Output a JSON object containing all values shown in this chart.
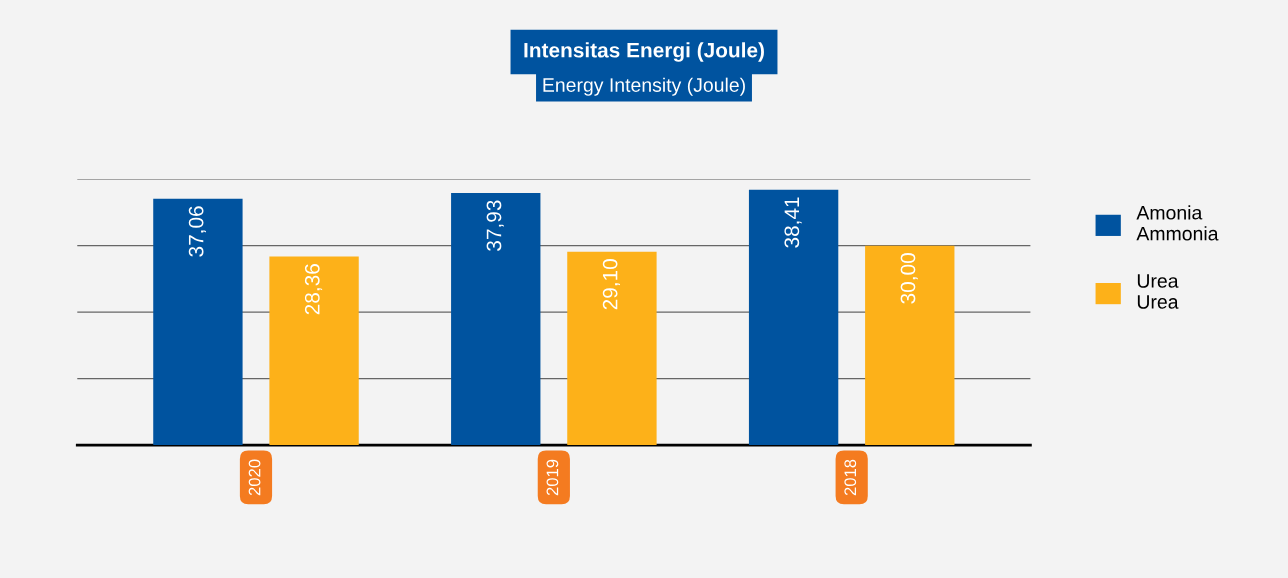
{
  "chart_data": {
    "type": "bar",
    "title": "Intensitas Energi (Joule)",
    "subtitle": "Energy Intensity (Joule)",
    "categories": [
      "2020",
      "2019",
      "2018"
    ],
    "series": [
      {
        "name": "Amonia\nAmmonia",
        "color": "#00539f",
        "values": [
          37.06,
          37.93,
          38.41
        ],
        "value_labels": [
          "37,06",
          "37,93",
          "38,41"
        ]
      },
      {
        "name": "Urea\nUrea",
        "color": "#fdb119",
        "values": [
          28.36,
          29.1,
          30.0
        ],
        "value_labels": [
          "28,36",
          "29,10",
          "30,00"
        ]
      }
    ],
    "ylim": [
      0,
      40
    ],
    "yticks": [
      {
        "value": 0,
        "label": null
      },
      {
        "value": 10,
        "label": null
      },
      {
        "value": 20,
        "label": null
      },
      {
        "value": 30,
        "label": null
      },
      {
        "value": 40,
        "label": null
      }
    ],
    "grid": "y",
    "legend": "right",
    "tick_labels": "x"
  }
}
